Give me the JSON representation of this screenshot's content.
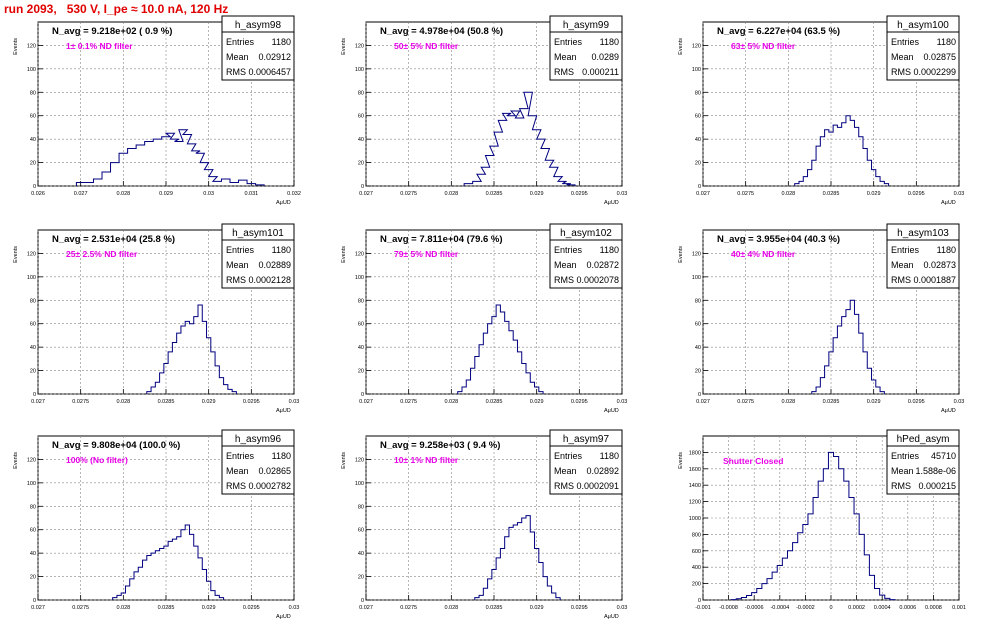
{
  "run_title": "run 2093,   530 V, I_pe ≈ 10.0 nA, 120 Hz",
  "chart_data": [
    {
      "type": "bar",
      "hist_name": "h_asym98",
      "ylabel": "Events",
      "xlabel": "A_{μUD}",
      "navg": "N_avg = 9.218e+02 ( 0.9 %)",
      "note": "1± 0.1% ND filter",
      "stats": {
        "entries": "1180",
        "mean": "0.02912",
        "rms": "0.0006457"
      },
      "xlim": [
        0.026,
        0.032
      ],
      "ylim": [
        0,
        140
      ],
      "xticks": [
        "0.026",
        "0.027",
        "0.028",
        "0.029",
        "0.03",
        "0.031",
        "0.032"
      ],
      "yticks": [
        "0",
        "20",
        "40",
        "60",
        "80",
        "100",
        "120"
      ],
      "bins": [
        [
          0.027,
          3
        ],
        [
          0.0272,
          3
        ],
        [
          0.0274,
          6
        ],
        [
          0.0276,
          12
        ],
        [
          0.0278,
          20
        ],
        [
          0.028,
          28
        ],
        [
          0.0282,
          32
        ],
        [
          0.0284,
          35
        ],
        [
          0.0286,
          38
        ],
        [
          0.0288,
          40
        ],
        [
          0.029,
          42
        ],
        [
          0.0291,
          45
        ],
        [
          0.0292,
          40
        ],
        [
          0.0293,
          38
        ],
        [
          0.0294,
          48
        ],
        [
          0.0295,
          44
        ],
        [
          0.0296,
          36
        ],
        [
          0.0297,
          30
        ],
        [
          0.0298,
          28
        ],
        [
          0.0299,
          20
        ],
        [
          0.03,
          14
        ],
        [
          0.0301,
          8
        ],
        [
          0.0302,
          4
        ],
        [
          0.0304,
          6
        ],
        [
          0.0306,
          3
        ],
        [
          0.0308,
          5
        ],
        [
          0.031,
          2
        ],
        [
          0.0312,
          1
        ]
      ]
    },
    {
      "type": "bar",
      "hist_name": "h_asym99",
      "ylabel": "Events",
      "xlabel": "A_{μUD}",
      "navg": "N_avg = 4.978e+04 (50.8 %)",
      "note": "50± 5% ND filter",
      "stats": {
        "entries": "1180",
        "mean": "0.0289",
        "rms": "0.000211"
      },
      "xlim": [
        0.027,
        0.03
      ],
      "ylim": [
        0,
        140
      ],
      "xticks": [
        "0.027",
        "0.0275",
        "0.028",
        "0.0285",
        "0.029",
        "0.0295",
        "0.03"
      ],
      "yticks": [
        "0",
        "20",
        "40",
        "60",
        "80",
        "100",
        "120"
      ],
      "bins": [
        [
          0.0282,
          2
        ],
        [
          0.0283,
          4
        ],
        [
          0.02835,
          10
        ],
        [
          0.0284,
          16
        ],
        [
          0.02845,
          26
        ],
        [
          0.0285,
          34
        ],
        [
          0.02855,
          46
        ],
        [
          0.0286,
          56
        ],
        [
          0.02865,
          62
        ],
        [
          0.0287,
          60
        ],
        [
          0.02875,
          64
        ],
        [
          0.0288,
          58
        ],
        [
          0.02885,
          66
        ],
        [
          0.0289,
          80
        ],
        [
          0.02895,
          60
        ],
        [
          0.029,
          48
        ],
        [
          0.02905,
          40
        ],
        [
          0.0291,
          32
        ],
        [
          0.02915,
          22
        ],
        [
          0.0292,
          16
        ],
        [
          0.02925,
          8
        ],
        [
          0.0293,
          4
        ],
        [
          0.02935,
          2
        ],
        [
          0.0294,
          1
        ]
      ]
    },
    {
      "type": "bar",
      "hist_name": "h_asym100",
      "ylabel": "Events",
      "xlabel": "A_{μUD}",
      "navg": "N_avg = 6.227e+04 (63.5 %)",
      "note": "63± 5% ND filter",
      "stats": {
        "entries": "1180",
        "mean": "0.02875",
        "rms": "0.0002299"
      },
      "xlim": [
        0.027,
        0.03
      ],
      "ylim": [
        0,
        140
      ],
      "xticks": [
        "0.027",
        "0.0275",
        "0.028",
        "0.0285",
        "0.029",
        "0.0295",
        "0.03"
      ],
      "yticks": [
        "0",
        "20",
        "40",
        "60",
        "80",
        "100",
        "120"
      ],
      "bins": [
        [
          0.0281,
          2
        ],
        [
          0.02815,
          4
        ],
        [
          0.0282,
          8
        ],
        [
          0.02825,
          14
        ],
        [
          0.0283,
          22
        ],
        [
          0.02835,
          34
        ],
        [
          0.0284,
          42
        ],
        [
          0.02845,
          48
        ],
        [
          0.0285,
          46
        ],
        [
          0.02855,
          52
        ],
        [
          0.0286,
          50
        ],
        [
          0.02865,
          54
        ],
        [
          0.0287,
          60
        ],
        [
          0.02875,
          56
        ],
        [
          0.0288,
          50
        ],
        [
          0.02885,
          42
        ],
        [
          0.0289,
          32
        ],
        [
          0.02895,
          22
        ],
        [
          0.029,
          14
        ],
        [
          0.02905,
          8
        ],
        [
          0.0291,
          4
        ],
        [
          0.02915,
          2
        ]
      ]
    },
    {
      "type": "bar",
      "hist_name": "h_asym101",
      "ylabel": "Events",
      "xlabel": "A_{μUD}",
      "navg": "N_avg = 2.531e+04 (25.8 %)",
      "note": "25± 2.5% ND filter",
      "stats": {
        "entries": "1180",
        "mean": "0.02889",
        "rms": "0.0002128"
      },
      "xlim": [
        0.027,
        0.03
      ],
      "ylim": [
        0,
        140
      ],
      "xticks": [
        "0.027",
        "0.0275",
        "0.028",
        "0.0285",
        "0.029",
        "0.0295",
        "0.03"
      ],
      "yticks": [
        "0",
        "20",
        "40",
        "60",
        "80",
        "100",
        "120"
      ],
      "bins": [
        [
          0.0283,
          2
        ],
        [
          0.02835,
          6
        ],
        [
          0.0284,
          10
        ],
        [
          0.02845,
          18
        ],
        [
          0.0285,
          26
        ],
        [
          0.02855,
          36
        ],
        [
          0.0286,
          44
        ],
        [
          0.02865,
          52
        ],
        [
          0.0287,
          58
        ],
        [
          0.02875,
          62
        ],
        [
          0.0288,
          60
        ],
        [
          0.02885,
          66
        ],
        [
          0.0289,
          76
        ],
        [
          0.02895,
          62
        ],
        [
          0.029,
          48
        ],
        [
          0.02905,
          36
        ],
        [
          0.0291,
          24
        ],
        [
          0.02915,
          14
        ],
        [
          0.0292,
          8
        ],
        [
          0.02925,
          4
        ],
        [
          0.0293,
          2
        ]
      ]
    },
    {
      "type": "bar",
      "hist_name": "h_asym102",
      "ylabel": "Events",
      "xlabel": "A_{μUD}",
      "navg": "N_avg = 7.811e+04 (79.6 %)",
      "note": "79± 5% ND filter",
      "stats": {
        "entries": "1180",
        "mean": "0.02872",
        "rms": "0.0002078"
      },
      "xlim": [
        0.027,
        0.03
      ],
      "ylim": [
        0,
        140
      ],
      "xticks": [
        "0.027",
        "0.0275",
        "0.028",
        "0.0285",
        "0.029",
        "0.0295",
        "0.03"
      ],
      "yticks": [
        "0",
        "20",
        "40",
        "60",
        "80",
        "100",
        "120"
      ],
      "bins": [
        [
          0.0281,
          2
        ],
        [
          0.02815,
          6
        ],
        [
          0.0282,
          12
        ],
        [
          0.02825,
          22
        ],
        [
          0.0283,
          32
        ],
        [
          0.02835,
          42
        ],
        [
          0.0284,
          52
        ],
        [
          0.02845,
          60
        ],
        [
          0.0285,
          66
        ],
        [
          0.02855,
          76
        ],
        [
          0.0286,
          70
        ],
        [
          0.02865,
          62
        ],
        [
          0.0287,
          54
        ],
        [
          0.02875,
          46
        ],
        [
          0.0288,
          36
        ],
        [
          0.02885,
          26
        ],
        [
          0.0289,
          18
        ],
        [
          0.02895,
          10
        ],
        [
          0.029,
          6
        ],
        [
          0.02905,
          2
        ]
      ]
    },
    {
      "type": "bar",
      "hist_name": "h_asym103",
      "ylabel": "Events",
      "xlabel": "A_{μUD}",
      "navg": "N_avg = 3.955e+04 (40.3 %)",
      "note": "40± 4% ND filter",
      "stats": {
        "entries": "1180",
        "mean": "0.02873",
        "rms": "0.0001887"
      },
      "xlim": [
        0.027,
        0.03
      ],
      "ylim": [
        0,
        140
      ],
      "xticks": [
        "0.027",
        "0.0275",
        "0.028",
        "0.0285",
        "0.029",
        "0.0295",
        "0.03"
      ],
      "yticks": [
        "0",
        "20",
        "40",
        "60",
        "80",
        "100",
        "120"
      ],
      "bins": [
        [
          0.0283,
          2
        ],
        [
          0.02835,
          6
        ],
        [
          0.0284,
          14
        ],
        [
          0.02845,
          24
        ],
        [
          0.0285,
          36
        ],
        [
          0.02855,
          48
        ],
        [
          0.0286,
          58
        ],
        [
          0.02865,
          66
        ],
        [
          0.0287,
          72
        ],
        [
          0.02875,
          80
        ],
        [
          0.0288,
          68
        ],
        [
          0.02885,
          52
        ],
        [
          0.0289,
          36
        ],
        [
          0.02895,
          22
        ],
        [
          0.029,
          12
        ],
        [
          0.02905,
          6
        ],
        [
          0.0291,
          2
        ]
      ]
    },
    {
      "type": "bar",
      "hist_name": "h_asym96",
      "ylabel": "Events",
      "xlabel": "A_{μUD}",
      "navg": "N_avg = 9.808e+04 (100.0 %)",
      "note": "100% (No filter)",
      "stats": {
        "entries": "1180",
        "mean": "0.02865",
        "rms": "0.0002782"
      },
      "xlim": [
        0.027,
        0.03
      ],
      "ylim": [
        0,
        140
      ],
      "xticks": [
        "0.027",
        "0.0275",
        "0.028",
        "0.0285",
        "0.029",
        "0.0295",
        "0.03"
      ],
      "yticks": [
        "0",
        "20",
        "40",
        "60",
        "80",
        "100",
        "120"
      ],
      "bins": [
        [
          0.0279,
          2
        ],
        [
          0.02795,
          4
        ],
        [
          0.028,
          6
        ],
        [
          0.02805,
          12
        ],
        [
          0.0281,
          18
        ],
        [
          0.02815,
          24
        ],
        [
          0.0282,
          28
        ],
        [
          0.02825,
          34
        ],
        [
          0.0283,
          38
        ],
        [
          0.02835,
          40
        ],
        [
          0.0284,
          42
        ],
        [
          0.02845,
          44
        ],
        [
          0.0285,
          46
        ],
        [
          0.02855,
          50
        ],
        [
          0.0286,
          52
        ],
        [
          0.02865,
          54
        ],
        [
          0.0287,
          60
        ],
        [
          0.02875,
          64
        ],
        [
          0.0288,
          56
        ],
        [
          0.02885,
          46
        ],
        [
          0.0289,
          36
        ],
        [
          0.02895,
          26
        ],
        [
          0.029,
          16
        ],
        [
          0.02905,
          8
        ],
        [
          0.0291,
          4
        ],
        [
          0.02915,
          2
        ]
      ]
    },
    {
      "type": "bar",
      "hist_name": "h_asym97",
      "ylabel": "Events",
      "xlabel": "A_{μUD}",
      "navg": "N_avg = 9.258e+03 ( 9.4 %)",
      "note": "10± 1% ND filter",
      "stats": {
        "entries": "1180",
        "mean": "0.02892",
        "rms": "0.0002091"
      },
      "xlim": [
        0.027,
        0.03
      ],
      "ylim": [
        0,
        140
      ],
      "xticks": [
        "0.027",
        "0.0275",
        "0.028",
        "0.0285",
        "0.029",
        "0.0295",
        "0.03"
      ],
      "yticks": [
        "0",
        "20",
        "40",
        "60",
        "80",
        "100",
        "120"
      ],
      "bins": [
        [
          0.0283,
          2
        ],
        [
          0.02835,
          4
        ],
        [
          0.0284,
          10
        ],
        [
          0.02845,
          18
        ],
        [
          0.0285,
          26
        ],
        [
          0.02855,
          36
        ],
        [
          0.0286,
          44
        ],
        [
          0.02865,
          54
        ],
        [
          0.0287,
          62
        ],
        [
          0.02875,
          64
        ],
        [
          0.0288,
          66
        ],
        [
          0.02885,
          70
        ],
        [
          0.0289,
          72
        ],
        [
          0.02895,
          58
        ],
        [
          0.029,
          44
        ],
        [
          0.02905,
          32
        ],
        [
          0.0291,
          20
        ],
        [
          0.02915,
          12
        ],
        [
          0.0292,
          6
        ],
        [
          0.02925,
          2
        ]
      ]
    },
    {
      "type": "bar",
      "hist_name": "hPed_asym",
      "ylabel": "Events",
      "xlabel": "",
      "navg": "",
      "note": "Shutter Closed",
      "stats": {
        "entries": "45710",
        "mean": "1.588e-06",
        "rms": "0.000215"
      },
      "xlim": [
        -0.001,
        0.001
      ],
      "ylim": [
        0,
        2000
      ],
      "xticks": [
        "-0.001",
        "-0.0008",
        "-0.0006",
        "-0.0004",
        "-0.0002",
        "0",
        "0.0002",
        "0.0004",
        "0.0006",
        "0.0008",
        "0.001"
      ],
      "yticks": [
        "0",
        "200",
        "400",
        "600",
        "800",
        "1000",
        "1200",
        "1400",
        "1600",
        "1800"
      ],
      "bins": [
        [
          -0.00076,
          5
        ],
        [
          -0.00072,
          15
        ],
        [
          -0.00068,
          30
        ],
        [
          -0.00064,
          55
        ],
        [
          -0.0006,
          90
        ],
        [
          -0.00056,
          140
        ],
        [
          -0.00052,
          200
        ],
        [
          -0.00048,
          260
        ],
        [
          -0.00044,
          340
        ],
        [
          -0.0004,
          420
        ],
        [
          -0.00036,
          510
        ],
        [
          -0.00032,
          600
        ],
        [
          -0.00028,
          700
        ],
        [
          -0.00024,
          820
        ],
        [
          -0.0002,
          920
        ],
        [
          -0.00016,
          1050
        ],
        [
          -0.00012,
          1250
        ],
        [
          -8e-05,
          1450
        ],
        [
          -4e-05,
          1600
        ],
        [
          0.0,
          1800
        ],
        [
          4e-05,
          1750
        ],
        [
          8e-05,
          1600
        ],
        [
          0.00012,
          1450
        ],
        [
          0.00016,
          1250
        ],
        [
          0.0002,
          1050
        ],
        [
          0.00024,
          800
        ],
        [
          0.00028,
          550
        ],
        [
          0.00032,
          300
        ],
        [
          0.00036,
          140
        ],
        [
          0.0004,
          60
        ],
        [
          0.00044,
          20
        ],
        [
          0.00048,
          5
        ]
      ]
    }
  ]
}
